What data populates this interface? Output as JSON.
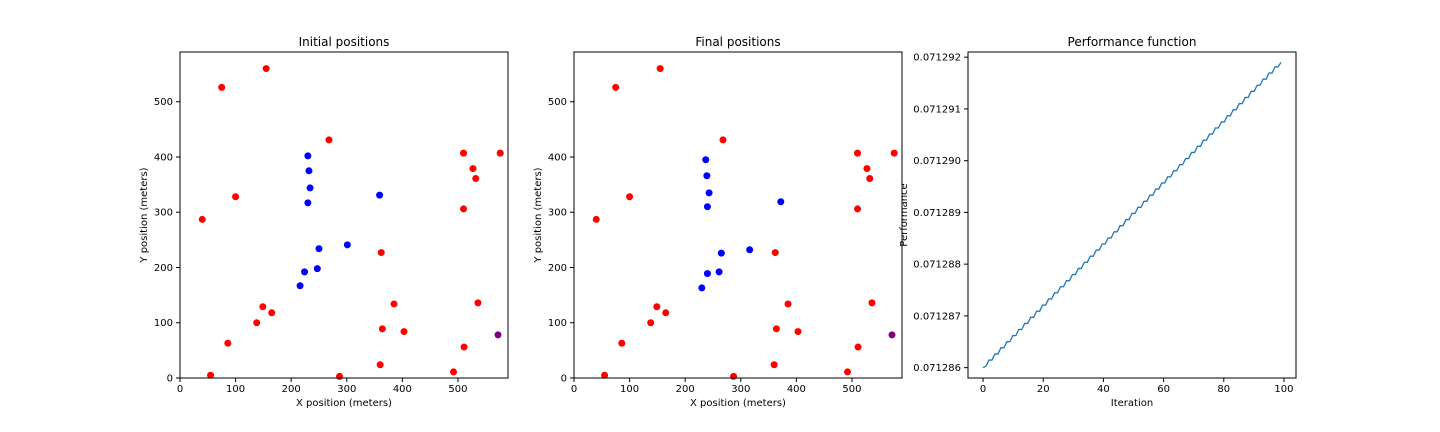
{
  "chart_data": [
    {
      "type": "scatter",
      "title": "Initial positions",
      "xlabel": "X position (meters)",
      "ylabel": "Y position (meters)",
      "xlim": [
        0,
        590
      ],
      "ylim": [
        0,
        590
      ],
      "xticks": [
        0,
        100,
        200,
        300,
        400,
        500
      ],
      "yticks": [
        0,
        100,
        200,
        300,
        400,
        500
      ],
      "grid": false,
      "series": [
        {
          "color": "#ff0000",
          "points": [
            [
              75,
              526
            ],
            [
              155,
              560
            ],
            [
              268,
              431
            ],
            [
              100,
              328
            ],
            [
              40,
              287
            ],
            [
              510,
              407
            ],
            [
              527,
              379
            ],
            [
              532,
              361
            ],
            [
              576,
              407
            ],
            [
              510,
              306
            ],
            [
              362,
              227
            ],
            [
              149,
              129
            ],
            [
              165,
              118
            ],
            [
              138,
              100
            ],
            [
              86,
              63
            ],
            [
              385,
              134
            ],
            [
              364,
              89
            ],
            [
              403,
              84
            ],
            [
              536,
              136
            ],
            [
              511,
              56
            ],
            [
              360,
              24
            ],
            [
              55,
              5
            ],
            [
              287,
              3
            ],
            [
              492,
              11
            ]
          ]
        },
        {
          "color": "#0000ff",
          "points": [
            [
              230,
              402
            ],
            [
              232,
              375
            ],
            [
              234,
              344
            ],
            [
              230,
              317
            ],
            [
              359,
              331
            ],
            [
              301,
              241
            ],
            [
              250,
              234
            ],
            [
              224,
              192
            ],
            [
              247,
              198
            ],
            [
              216,
              167
            ]
          ]
        },
        {
          "color": "#800080",
          "points": [
            [
              572,
              78
            ]
          ]
        }
      ]
    },
    {
      "type": "scatter",
      "title": "Final positions",
      "xlabel": "X position (meters)",
      "ylabel": "Y position (meters)",
      "xlim": [
        0,
        590
      ],
      "ylim": [
        0,
        590
      ],
      "xticks": [
        0,
        100,
        200,
        300,
        400,
        500
      ],
      "yticks": [
        0,
        100,
        200,
        300,
        400,
        500
      ],
      "grid": false,
      "series": [
        {
          "color": "#ff0000",
          "points": [
            [
              75,
              526
            ],
            [
              155,
              560
            ],
            [
              268,
              431
            ],
            [
              100,
              328
            ],
            [
              40,
              287
            ],
            [
              510,
              407
            ],
            [
              527,
              379
            ],
            [
              532,
              361
            ],
            [
              576,
              407
            ],
            [
              510,
              306
            ],
            [
              362,
              227
            ],
            [
              149,
              129
            ],
            [
              165,
              118
            ],
            [
              138,
              100
            ],
            [
              86,
              63
            ],
            [
              385,
              134
            ],
            [
              364,
              89
            ],
            [
              403,
              84
            ],
            [
              536,
              136
            ],
            [
              511,
              56
            ],
            [
              360,
              24
            ],
            [
              55,
              5
            ],
            [
              287,
              3
            ],
            [
              492,
              11
            ]
          ]
        },
        {
          "color": "#0000ff",
          "points": [
            [
              237,
              395
            ],
            [
              239,
              366
            ],
            [
              243,
              335
            ],
            [
              240,
              310
            ],
            [
              372,
              319
            ],
            [
              316,
              232
            ],
            [
              265,
              226
            ],
            [
              240,
              189
            ],
            [
              261,
              192
            ],
            [
              230,
              163
            ]
          ]
        },
        {
          "color": "#800080",
          "points": [
            [
              572,
              78
            ]
          ]
        }
      ]
    },
    {
      "type": "line",
      "title": "Performance function",
      "xlabel": "Iteration",
      "ylabel": "Performance",
      "xlim": [
        -5,
        104
      ],
      "ylim": [
        0.0712858,
        0.0712921
      ],
      "xticks": [
        0,
        20,
        40,
        60,
        80,
        100
      ],
      "yticks": [
        0.071286,
        0.071287,
        0.071288,
        0.071289,
        0.07129,
        0.071291,
        0.071292
      ],
      "ytick_labels": [
        "0.071286",
        "0.071287",
        "0.071288",
        "0.071289",
        "0.071290",
        "0.071291",
        "0.071292"
      ],
      "grid": false,
      "series": [
        {
          "color": "#1f77b4",
          "x_start": 0,
          "x_end": 99,
          "y_start": 0.071286,
          "y_end": 0.0712919
        }
      ]
    }
  ]
}
